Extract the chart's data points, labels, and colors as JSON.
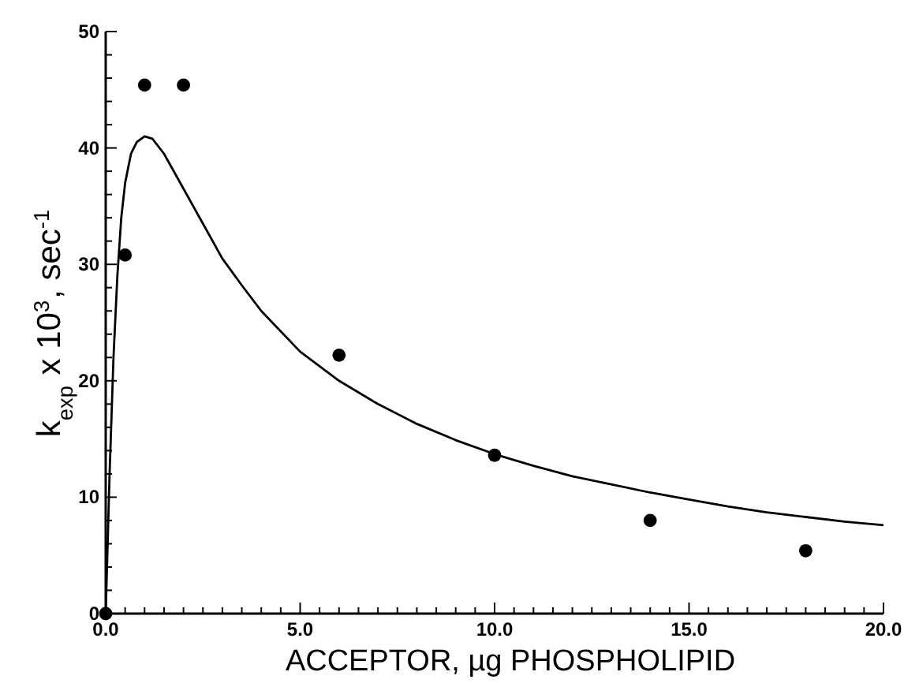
{
  "chart_data": {
    "type": "scatter",
    "xlabel": "ACCEPTOR, µg PHOSPHOLIPID",
    "ylabel": "k$_{exp}$ x 10$^{3}$, sec$^{-1}$",
    "xlim": [
      0,
      20
    ],
    "ylim": [
      0,
      50
    ],
    "xticks": [
      {
        "value": 0,
        "label": "0.0"
      },
      {
        "value": 0.5,
        "label": null
      },
      {
        "value": 1,
        "label": null
      },
      {
        "value": 1.5,
        "label": null
      },
      {
        "value": 2,
        "label": null
      },
      {
        "value": 2.5,
        "label": null
      },
      {
        "value": 3,
        "label": null
      },
      {
        "value": 3.5,
        "label": null
      },
      {
        "value": 4,
        "label": null
      },
      {
        "value": 4.5,
        "label": null
      },
      {
        "value": 5,
        "label": "5.0"
      },
      {
        "value": 5.5,
        "label": null
      },
      {
        "value": 6,
        "label": null
      },
      {
        "value": 6.5,
        "label": null
      },
      {
        "value": 7,
        "label": null
      },
      {
        "value": 7.5,
        "label": null
      },
      {
        "value": 8,
        "label": null
      },
      {
        "value": 8.5,
        "label": null
      },
      {
        "value": 9,
        "label": null
      },
      {
        "value": 9.5,
        "label": null
      },
      {
        "value": 10,
        "label": "10.0"
      },
      {
        "value": 10.5,
        "label": null
      },
      {
        "value": 11,
        "label": null
      },
      {
        "value": 11.5,
        "label": null
      },
      {
        "value": 12,
        "label": null
      },
      {
        "value": 12.5,
        "label": null
      },
      {
        "value": 13,
        "label": null
      },
      {
        "value": 13.5,
        "label": null
      },
      {
        "value": 14,
        "label": null
      },
      {
        "value": 14.5,
        "label": null
      },
      {
        "value": 15,
        "label": "15.0"
      },
      {
        "value": 15.5,
        "label": null
      },
      {
        "value": 16,
        "label": null
      },
      {
        "value": 16.5,
        "label": null
      },
      {
        "value": 17,
        "label": null
      },
      {
        "value": 17.5,
        "label": null
      },
      {
        "value": 18,
        "label": null
      },
      {
        "value": 18.5,
        "label": null
      },
      {
        "value": 19,
        "label": null
      },
      {
        "value": 19.5,
        "label": null
      },
      {
        "value": 20,
        "label": "20.0"
      }
    ],
    "yticks": [
      0,
      {
        "value": 2,
        "label": null
      },
      {
        "value": 4,
        "label": null
      },
      {
        "value": 6,
        "label": null
      },
      {
        "value": 8,
        "label": null
      },
      10,
      {
        "value": 12,
        "label": null
      },
      {
        "value": 14,
        "label": null
      },
      {
        "value": 16,
        "label": null
      },
      {
        "value": 18,
        "label": null
      },
      20,
      {
        "value": 22,
        "label": null
      },
      {
        "value": 24,
        "label": null
      },
      {
        "value": 26,
        "label": null
      },
      {
        "value": 28,
        "label": null
      },
      30,
      {
        "value": 32,
        "label": null
      },
      {
        "value": 34,
        "label": null
      },
      {
        "value": 36,
        "label": null
      },
      {
        "value": 38,
        "label": null
      },
      40,
      {
        "value": 42,
        "label": null
      },
      {
        "value": 44,
        "label": null
      },
      {
        "value": 46,
        "label": null
      },
      {
        "value": 48,
        "label": null
      },
      50
    ],
    "grid": false,
    "marker": "circle",
    "series": [
      {
        "color": "#000000",
        "x": [
          0,
          0.5,
          1,
          2,
          6,
          10,
          14,
          18
        ],
        "values": [
          0,
          30.8,
          45.4,
          45.4,
          22.2,
          13.6,
          8.0,
          5.4
        ]
      },
      {
        "type": "line",
        "color": "#000000",
        "marker": "none",
        "line_style": "solid",
        "x": [
          0,
          0.05,
          0.1,
          0.2,
          0.3,
          0.4,
          0.5,
          0.65,
          0.8,
          1,
          1.2,
          1.5,
          2,
          2.5,
          3,
          3.5,
          4,
          5,
          6,
          7,
          8,
          9,
          10,
          11,
          12,
          13,
          14,
          15,
          16,
          17,
          18,
          19,
          20
        ],
        "values": [
          0,
          6,
          12,
          22,
          29,
          34,
          37,
          39.5,
          40.5,
          41,
          40.8,
          39.5,
          36.5,
          33.5,
          30.5,
          28.2,
          26,
          22.5,
          20,
          18,
          16.3,
          14.9,
          13.7,
          12.7,
          11.8,
          11.1,
          10.4,
          9.8,
          9.2,
          8.7,
          8.3,
          7.9,
          7.6
        ]
      }
    ]
  }
}
